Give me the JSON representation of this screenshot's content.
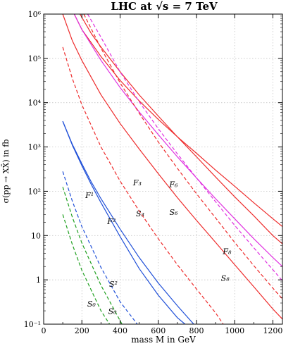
{
  "chart_data": {
    "type": "line",
    "title": "LHC at √s = 7 TeV",
    "xlabel": "mass M in GeV",
    "ylabel": "σ(pp → XX̄) in fb",
    "xlim": [
      0,
      1250
    ],
    "ylim": [
      0.1,
      1000000
    ],
    "yscale": "log",
    "grid": true,
    "x_ticks": [
      0,
      200,
      400,
      600,
      800,
      1000,
      1200
    ],
    "x_tick_labels": [
      "0",
      "200",
      "400",
      "600",
      "800",
      "1000",
      "1200"
    ],
    "y_ticks": [
      0.1,
      1,
      10,
      100,
      1000,
      10000,
      100000,
      1000000
    ],
    "y_tick_labels": [
      "10⁻¹",
      "1",
      "10",
      "10²",
      "10³",
      "10⁴",
      "10⁵",
      "10⁶"
    ],
    "series": [
      {
        "name": "F₈",
        "color": "#ee2c2c",
        "dash": "solid",
        "points": [
          [
            160,
            1000000
          ],
          [
            200,
            450000
          ],
          [
            300,
            110000
          ],
          [
            400,
            32000
          ],
          [
            500,
            11000
          ],
          [
            600,
            4200
          ],
          [
            700,
            1700
          ],
          [
            800,
            720
          ],
          [
            900,
            300
          ],
          [
            1000,
            130
          ],
          [
            1100,
            55
          ],
          [
            1200,
            24
          ],
          [
            1250,
            16
          ]
        ]
      },
      {
        "name": "F₃",
        "color": "#ee2c2c",
        "dash": "solid",
        "points": [
          [
            100,
            1000000
          ],
          [
            150,
            250000
          ],
          [
            200,
            90000
          ],
          [
            300,
            15000
          ],
          [
            400,
            3400
          ],
          [
            500,
            900
          ],
          [
            600,
            250
          ],
          [
            700,
            72
          ],
          [
            800,
            22
          ],
          [
            900,
            7
          ],
          [
            1000,
            2.2
          ],
          [
            1100,
            0.7
          ],
          [
            1200,
            0.22
          ],
          [
            1250,
            0.13
          ]
        ]
      },
      {
        "name": "F₆",
        "color": "#ee2c2c",
        "dash": "solid",
        "points": [
          [
            190,
            1000000
          ],
          [
            250,
            360000
          ],
          [
            300,
            180000
          ],
          [
            400,
            50000
          ],
          [
            500,
            15000
          ],
          [
            600,
            5000
          ],
          [
            700,
            1700
          ],
          [
            800,
            600
          ],
          [
            900,
            210
          ],
          [
            1000,
            75
          ],
          [
            1100,
            28
          ],
          [
            1200,
            10
          ],
          [
            1250,
            6.5
          ]
        ]
      },
      {
        "name": "F₈ (magenta)",
        "color": "#e030e0",
        "dash": "solid",
        "points": [
          [
            160,
            1000000
          ],
          [
            200,
            450000
          ],
          [
            300,
            90000
          ],
          [
            400,
            22000
          ],
          [
            500,
            6200
          ],
          [
            600,
            1900
          ],
          [
            700,
            600
          ],
          [
            800,
            200
          ],
          [
            900,
            68
          ],
          [
            1000,
            24
          ],
          [
            1100,
            8.5
          ],
          [
            1200,
            3.2
          ],
          [
            1250,
            2
          ]
        ]
      },
      {
        "name": "S₈",
        "color": "#e030e0",
        "dash": "dashed",
        "points": [
          [
            230,
            1000000
          ],
          [
            300,
            300000
          ],
          [
            400,
            50000
          ],
          [
            500,
            10500
          ],
          [
            600,
            2600
          ],
          [
            700,
            700
          ],
          [
            800,
            200
          ],
          [
            900,
            58
          ],
          [
            1000,
            17
          ],
          [
            1100,
            5.3
          ],
          [
            1200,
            1.7
          ],
          [
            1250,
            0.95
          ]
        ]
      },
      {
        "name": "S₆",
        "color": "#ee2c2c",
        "dash": "dashed",
        "points": [
          [
            210,
            1000000
          ],
          [
            300,
            170000
          ],
          [
            400,
            28000
          ],
          [
            500,
            5800
          ],
          [
            600,
            1300
          ],
          [
            700,
            330
          ],
          [
            800,
            88
          ],
          [
            900,
            25
          ],
          [
            1000,
            7
          ],
          [
            1100,
            2.1
          ],
          [
            1200,
            0.65
          ],
          [
            1250,
            0.37
          ]
        ]
      },
      {
        "name": "S₃",
        "color": "#ee2c2c",
        "dash": "dashed",
        "points": [
          [
            100,
            180000
          ],
          [
            150,
            35000
          ],
          [
            200,
            9000
          ],
          [
            300,
            1000
          ],
          [
            400,
            170
          ],
          [
            500,
            36
          ],
          [
            600,
            8.5
          ],
          [
            700,
            2.2
          ],
          [
            800,
            0.62
          ],
          [
            900,
            0.18
          ],
          [
            940,
            0.1
          ]
        ]
      },
      {
        "name": "F¹",
        "color": "#2050d8",
        "dash": "solid",
        "points": [
          [
            100,
            3800
          ],
          [
            150,
            1100
          ],
          [
            200,
            380
          ],
          [
            250,
            140
          ],
          [
            300,
            55
          ],
          [
            400,
            9.5
          ],
          [
            500,
            1.8
          ],
          [
            600,
            0.45
          ],
          [
            700,
            0.14
          ],
          [
            740,
            0.1
          ]
        ]
      },
      {
        "name": "F²",
        "color": "#2050d8",
        "dash": "solid",
        "points": [
          [
            100,
            3800
          ],
          [
            150,
            1150
          ],
          [
            200,
            420
          ],
          [
            250,
            160
          ],
          [
            300,
            68
          ],
          [
            400,
            14
          ],
          [
            500,
            3.2
          ],
          [
            600,
            0.85
          ],
          [
            700,
            0.26
          ],
          [
            800,
            0.085
          ]
        ]
      },
      {
        "name": "S²",
        "color": "#2050d8",
        "dash": "dashed",
        "points": [
          [
            100,
            280
          ],
          [
            150,
            60
          ],
          [
            200,
            16
          ],
          [
            300,
            1.9
          ],
          [
            400,
            0.32
          ],
          [
            490,
            0.1
          ]
        ]
      },
      {
        "name": "S₀ (upper)",
        "color": "#20a020",
        "dash": "dashed",
        "points": [
          [
            100,
            125
          ],
          [
            150,
            26
          ],
          [
            200,
            6.8
          ],
          [
            300,
            0.75
          ],
          [
            400,
            0.12
          ],
          [
            410,
            0.1
          ]
        ]
      },
      {
        "name": "S₀ (lower)",
        "color": "#20a020",
        "dash": "dashed",
        "points": [
          [
            100,
            30
          ],
          [
            150,
            6.3
          ],
          [
            200,
            1.65
          ],
          [
            300,
            0.2
          ],
          [
            345,
            0.1
          ]
        ]
      }
    ],
    "annotations": [
      {
        "text": "F₃",
        "x": 490,
        "y": 135,
        "color": "#ee2c2c"
      },
      {
        "text": "F₆",
        "x": 680,
        "y": 125,
        "color": "#ee2c2c"
      },
      {
        "text": "S₃",
        "x": 505,
        "y": 27,
        "color": "#ee2c2c"
      },
      {
        "text": "S₆",
        "x": 680,
        "y": 29,
        "color": "#ee2c2c"
      },
      {
        "text": "F₈",
        "x": 960,
        "y": 3.8,
        "color": "#e030e0"
      },
      {
        "text": "S₈",
        "x": 950,
        "y": 0.95,
        "color": "#e030e0"
      },
      {
        "text": "F¹",
        "x": 240,
        "y": 70,
        "color": "#2050d8"
      },
      {
        "text": "F²",
        "x": 355,
        "y": 18,
        "color": "#2050d8"
      },
      {
        "text": "S²",
        "x": 365,
        "y": 0.7,
        "color": "#2050d8"
      },
      {
        "text": "S₀",
        "x": 250,
        "y": 0.25,
        "color": "#20a020"
      },
      {
        "text": "S₀",
        "x": 360,
        "y": 0.17,
        "color": "#20a020"
      }
    ]
  }
}
